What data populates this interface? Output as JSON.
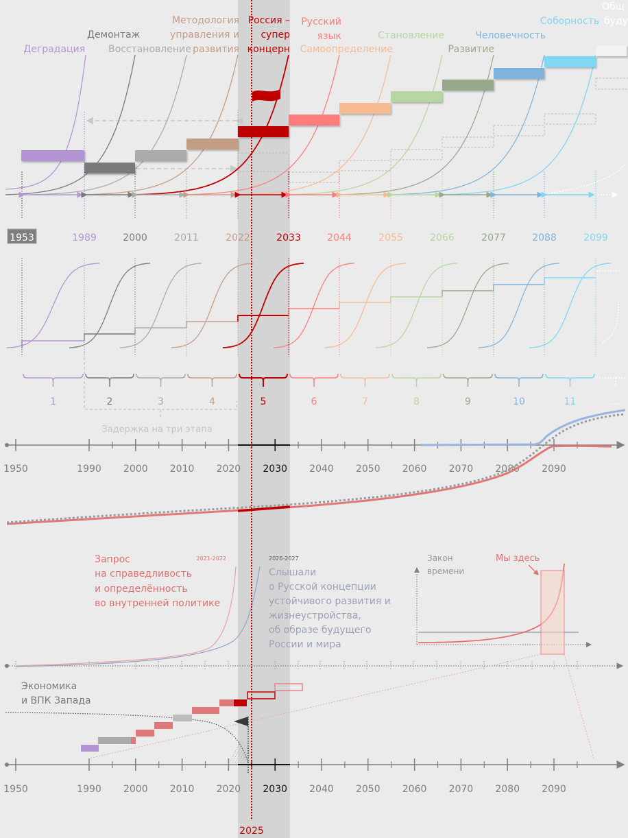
{
  "colors": {
    "background": "#ebebeb",
    "band": "#d4d4d4",
    "now_line": "#c00000",
    "axis": "#7f7f7f",
    "stages": [
      "#b495d3",
      "#7a7a7a",
      "#ababab",
      "#c39d86",
      "#c00000",
      "#ff7c7c",
      "#f7bb93",
      "#b7d6a2",
      "#99a88a",
      "#80b4dc",
      "#7fd6f5",
      "#ffffff"
    ]
  },
  "now": {
    "year": 2025,
    "label": "2025",
    "band_start_year": 2022,
    "band_end_year": 2033
  },
  "stages": [
    {
      "n": "1",
      "title": "Деградация",
      "year": "1989"
    },
    {
      "n": "2",
      "title": "Демонтаж",
      "year": "2000"
    },
    {
      "n": "3",
      "title": "Восстановление",
      "year": "2011"
    },
    {
      "n": "4",
      "title": "Методология управления и развития",
      "year": "2022"
    },
    {
      "n": "5",
      "title": "Россия – супер концерн",
      "year": "2033"
    },
    {
      "n": "6",
      "title": "Русский язык",
      "year": "2044"
    },
    {
      "n": "7",
      "title": "Самоопределение",
      "year": "2055"
    },
    {
      "n": "8",
      "title": "Становление",
      "year": "2066"
    },
    {
      "n": "9",
      "title": "Развитие",
      "year": "2077"
    },
    {
      "n": "10",
      "title": "Человечность",
      "year": "2088"
    },
    {
      "n": "11",
      "title": "Соборность",
      "year": "2099"
    },
    {
      "n": "...",
      "title": "Общ… буду…",
      "year": ""
    }
  ],
  "header_labels": {
    "degradation": "Деградация",
    "dismantling": "Демонтаж",
    "restoration": "Восстановление",
    "methodology_1": "Методология",
    "methodology_2": "управления и",
    "methodology_3": "развития",
    "russia_1": "Россия –",
    "russia_2": "супер",
    "russia_3": "концерн",
    "language_1": "Русский",
    "language_2": "язык",
    "self_determination": "Самоопределение",
    "formation": "Становление",
    "development": "Развитие",
    "humanity": "Человечность",
    "sobornost": "Соборность",
    "future_1": "Общ",
    "future_2": "буду"
  },
  "start_year": "1953",
  "delay_label": "Задержка на три этапа",
  "ellipsis": "...",
  "axis_years": [
    "1950",
    "1990",
    "2000",
    "2010",
    "2020",
    "2030",
    "2040",
    "2050",
    "2060",
    "2070",
    "2080",
    "2090"
  ],
  "annotations": {
    "demand_years": "2021-2022",
    "demand_1": "Запрос",
    "demand_2": "на справедливость",
    "demand_3": "и определённость",
    "demand_4": "во внутренней политике",
    "heard_years": "2026-2027",
    "heard_1": "Слышали",
    "heard_2": "о Русской концепции",
    "heard_3": "устойчивого развития и",
    "heard_4": "жизнеустройства,",
    "heard_5": "об образе будущего",
    "heard_6": "России и мира",
    "law_1": "Закон",
    "law_2": "времени",
    "we_are_here": "Мы здесь",
    "west_1": "Экономика",
    "west_2": "и ВПК Запада"
  },
  "chart_data": {
    "type": "line",
    "title": "",
    "xlabel": "",
    "ylabel": "",
    "x_ticks": [
      1950,
      1990,
      2000,
      2010,
      2020,
      2030,
      2040,
      2050,
      2060,
      2070,
      2080,
      2090
    ],
    "stage_boundaries": [
      1953,
      1989,
      2000,
      2011,
      2022,
      2033,
      2044,
      2055,
      2066,
      2077,
      2088,
      2099
    ],
    "series": [
      {
        "name": "Russia trajectory (red)",
        "points": [
          [
            1950,
            0.02
          ],
          [
            2020,
            0.12
          ],
          [
            2040,
            0.15
          ],
          [
            2060,
            0.22
          ],
          [
            2075,
            0.35
          ],
          [
            2088,
            0.62
          ],
          [
            2095,
            0.63
          ]
        ]
      },
      {
        "name": "Blue trajectory",
        "points": [
          [
            2061,
            0.63
          ],
          [
            2085,
            0.64
          ],
          [
            2090,
            0.72
          ],
          [
            2100,
            0.8
          ]
        ]
      },
      {
        "name": "Dotted trajectory",
        "points": [
          [
            1950,
            0.03
          ],
          [
            2020,
            0.13
          ],
          [
            2060,
            0.25
          ],
          [
            2080,
            0.45
          ],
          [
            2090,
            0.68
          ],
          [
            2100,
            0.78
          ]
        ]
      }
    ],
    "west_economy_steps": [
      {
        "from": 1988,
        "to": 1992,
        "color": "purple"
      },
      {
        "from": 1992,
        "to": 2000,
        "color": "grey"
      },
      {
        "from": 2000,
        "to": 2004,
        "color": "red"
      },
      {
        "from": 2004,
        "to": 2008,
        "color": "red"
      },
      {
        "from": 2008,
        "to": 2012,
        "color": "grey"
      },
      {
        "from": 2012,
        "to": 2018,
        "color": "red"
      },
      {
        "from": 2018,
        "to": 2024,
        "color": "red"
      },
      {
        "from": 2024,
        "to": 2030,
        "color": "red-outline"
      },
      {
        "from": 2030,
        "to": 2036,
        "color": "red-outline"
      }
    ]
  }
}
